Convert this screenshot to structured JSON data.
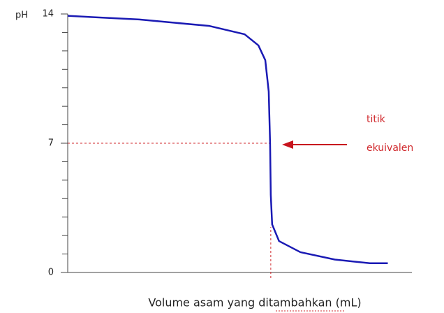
{
  "chart_data": {
    "type": "line",
    "y_label": "pH",
    "x_label": "Volume asam yang ditambahkan (mL)",
    "xlim": [
      0,
      50
    ],
    "ylim": [
      0,
      14
    ],
    "yticks": [
      0,
      7,
      14
    ],
    "minor_yticks": [
      1,
      2,
      3,
      4,
      5,
      6,
      8,
      9,
      10,
      11,
      12,
      13
    ],
    "series": [
      {
        "color": "#1a1ab4",
        "x": [
          0,
          10.4,
          20.6,
          25.7,
          27.7,
          28.7,
          29.2,
          29.4,
          29.5,
          29.7,
          30.7,
          33.8,
          38.8,
          43.9,
          46.5
        ],
        "values": [
          13.9,
          13.7,
          13.35,
          12.9,
          12.3,
          11.5,
          9.8,
          7,
          4.2,
          2.6,
          1.7,
          1.1,
          0.7,
          0.5,
          0.5
        ]
      }
    ],
    "equivalence_point": {
      "x": 29.5,
      "y": 7
    },
    "annotation": {
      "lines": [
        "titik",
        "ekuivalen"
      ],
      "color": "#d0282c"
    }
  }
}
